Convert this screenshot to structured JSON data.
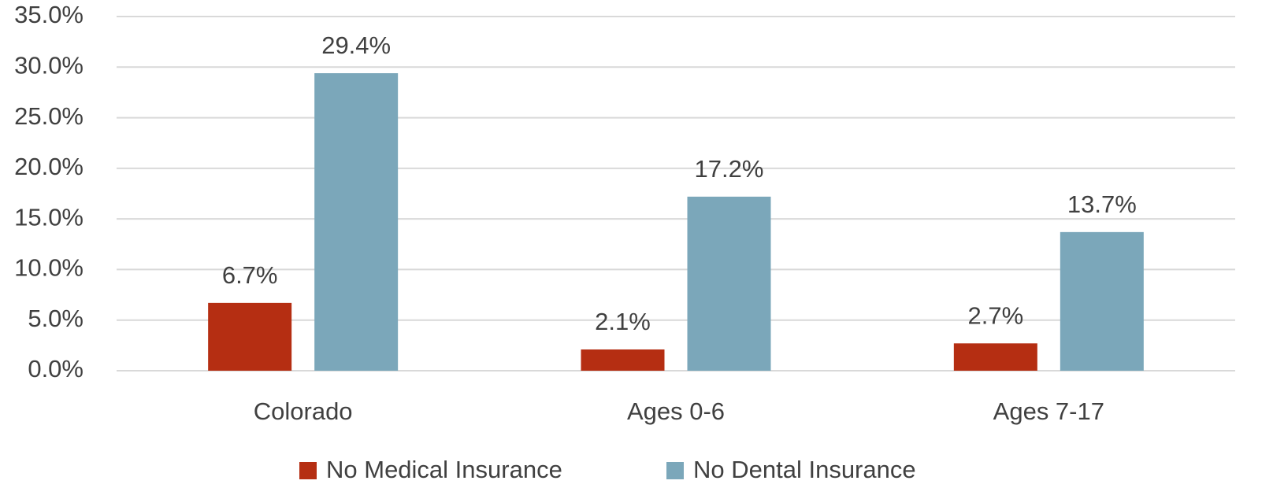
{
  "chart_data": {
    "type": "bar",
    "categories": [
      "Colorado",
      "Ages 0-6",
      "Ages 7-17"
    ],
    "series": [
      {
        "name": "No Medical Insurance",
        "color": "#b52e12",
        "values": [
          6.7,
          2.1,
          2.7
        ],
        "value_labels": [
          "6.7%",
          "2.1%",
          "2.7%"
        ]
      },
      {
        "name": "No Dental Insurance",
        "color": "#7ba7ba",
        "values": [
          29.4,
          17.2,
          13.7
        ],
        "value_labels": [
          "29.4%",
          "17.2%",
          "13.7%"
        ]
      }
    ],
    "ylim": [
      0,
      35
    ],
    "yticks": [
      {
        "value": 0,
        "label": "0.0%"
      },
      {
        "value": 5,
        "label": "5.0%"
      },
      {
        "value": 10,
        "label": "10.0%"
      },
      {
        "value": 15,
        "label": "15.0%"
      },
      {
        "value": 20,
        "label": "20.0%"
      },
      {
        "value": 25,
        "label": "25.0%"
      },
      {
        "value": 30,
        "label": "30.0%"
      },
      {
        "value": 35,
        "label": "35.0%"
      }
    ],
    "grid": true,
    "legend": "bottom"
  }
}
